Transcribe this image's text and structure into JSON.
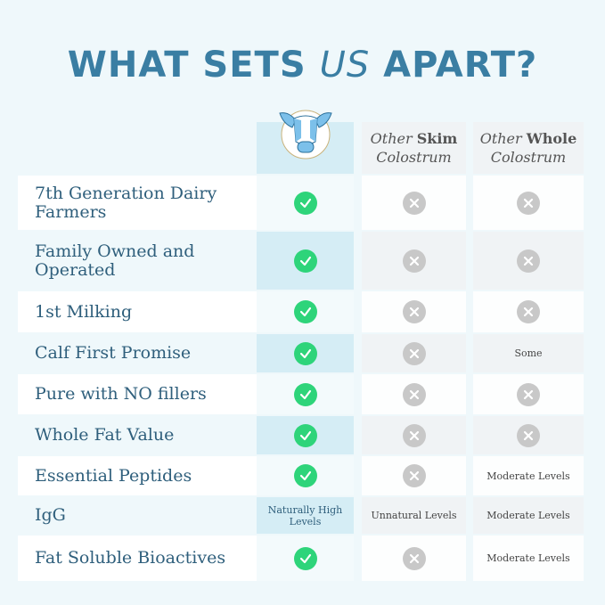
{
  "title": {
    "part1": "WHAT SETS ",
    "emph": "US",
    "part2": " APART?"
  },
  "colors": {
    "title": "#3a7ea3",
    "check": "#2ed47a",
    "cross": "#c8c8c8",
    "highlight": "#d5edf5"
  },
  "columns": [
    {
      "type": "logo",
      "icon": "cow-logo-icon"
    },
    {
      "italic": "Other",
      "bold": "Skim",
      "line2": "Colostrum"
    },
    {
      "italic": "Other",
      "bold": "Whole",
      "line2": "Colostrum"
    }
  ],
  "rows": [
    {
      "label": "7th Generation Dairy Farmers",
      "values": [
        "check",
        "cross",
        "cross"
      ]
    },
    {
      "label": "Family Owned and Operated",
      "values": [
        "check",
        "cross",
        "cross"
      ]
    },
    {
      "label": "1st Milking",
      "values": [
        "check",
        "cross",
        "cross"
      ]
    },
    {
      "label": "Calf First Promise",
      "values": [
        "check",
        "cross",
        "Some"
      ]
    },
    {
      "label": "Pure with NO fillers",
      "values": [
        "check",
        "cross",
        "cross"
      ]
    },
    {
      "label": "Whole Fat Value",
      "values": [
        "check",
        "cross",
        "cross"
      ]
    },
    {
      "label": "Essential Peptides",
      "values": [
        "check",
        "cross",
        "Moderate Levels"
      ]
    },
    {
      "label": "IgG",
      "values": [
        "Naturally High Levels",
        "Unnatural Levels",
        "Moderate Levels"
      ]
    },
    {
      "label": "Fat Soluble Bioactives",
      "values": [
        "check",
        "cross",
        "Moderate Levels"
      ]
    }
  ]
}
